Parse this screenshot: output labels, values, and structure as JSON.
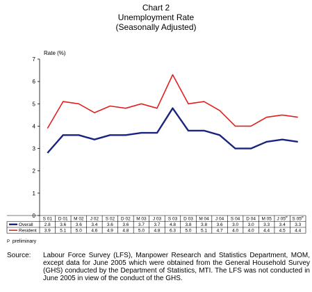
{
  "chart_data": {
    "type": "line",
    "title": "Chart 2",
    "subtitle": "Unemployment Rate",
    "subtitle2": "(Seasonally Adjusted)",
    "ylabel": "Rate (%)",
    "xlabel": "",
    "ylim": [
      0,
      7
    ],
    "yticks": [
      "0",
      "1",
      "2",
      "3",
      "4",
      "5",
      "6",
      "7"
    ],
    "grid": false,
    "categories": [
      "S 01",
      "D 01",
      "M 02",
      "J 02",
      "S 02",
      "D 02",
      "M 03",
      "J 03",
      "S 03",
      "D 03",
      "M 04",
      "J 04",
      "S 04",
      "D 04",
      "M 05",
      "J 05",
      "S 05"
    ],
    "category_suffix": {
      "15": "P",
      "16": "P"
    },
    "series": [
      {
        "name": "Overall",
        "color": "#1a237e",
        "values": [
          2.8,
          3.6,
          3.6,
          3.4,
          3.6,
          3.6,
          3.7,
          3.7,
          4.8,
          3.8,
          3.8,
          3.6,
          3.0,
          3.0,
          3.3,
          3.4,
          3.3
        ],
        "labels": [
          "2.8",
          "3.6",
          "3.6",
          "3.4",
          "3.6",
          "3.6",
          "3.7",
          "3.7",
          "4.8",
          "3.8",
          "3.8",
          "3.6",
          "3.0",
          "3.0",
          "3.3",
          "3.4",
          "3.3"
        ]
      },
      {
        "name": "Resident",
        "color": "#e0201e",
        "values": [
          3.9,
          5.1,
          5.0,
          4.6,
          4.9,
          4.8,
          5.0,
          4.8,
          6.3,
          5.0,
          5.1,
          4.7,
          4.0,
          4.0,
          4.4,
          4.5,
          4.4
        ],
        "labels": [
          "3.9",
          "5.1",
          "5.0",
          "4.6",
          "4.9",
          "4.8",
          "5.0",
          "4.8",
          "6.3",
          "5.0",
          "5.1",
          "4.7",
          "4.0",
          "4.0",
          "4.4",
          "4.5",
          "4.4"
        ]
      }
    ],
    "legend": "table-below"
  },
  "footnote": {
    "marker": "P",
    "text": "preliminary"
  },
  "source": {
    "label": "Source:",
    "text": "Labour Force Survey (LFS), Manpower Research and Statistics Department, MOM, except data for June 2005 which were obtained from the General Household Survey (GHS) conducted by the Department of Statistics, MTI. The LFS was not conducted in June 2005 in view of the conduct of the GHS."
  }
}
